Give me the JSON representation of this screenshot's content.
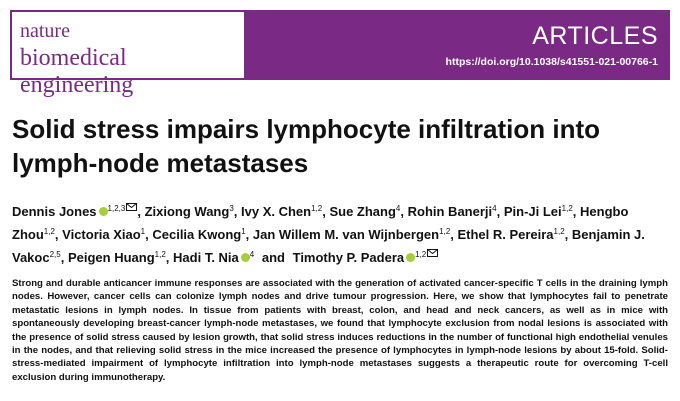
{
  "header": {
    "journal_line1": "nature",
    "journal_line2": "biomedical engineering",
    "section": "ARTICLES",
    "doi": "https://doi.org/10.1038/s41551-021-00766-1"
  },
  "title": "Solid stress impairs lymphocyte infiltration into lymph-node metastases",
  "authors": [
    {
      "name": "Dennis Jones",
      "affiliations": "1,2,3",
      "separator": ","
    },
    {
      "name": "Zixiong Wang",
      "affiliations": "3",
      "separator": ","
    },
    {
      "name": "Ivy X. Chen",
      "affiliations": "1,2",
      "separator": ","
    },
    {
      "name": "Sue Zhang",
      "affiliations": "4",
      "separator": ","
    },
    {
      "name": "Rohin Banerji",
      "affiliations": "4",
      "separator": ","
    },
    {
      "name": "Pin-Ji Lei",
      "affiliations": "1,2",
      "separator": ","
    },
    {
      "name": "Hengbo Zhou",
      "affiliations": "1,2",
      "separator": ","
    },
    {
      "name": "Victoria Xiao",
      "affiliations": "1",
      "separator": ","
    },
    {
      "name": "Cecilia Kwong",
      "affiliations": "1",
      "separator": ","
    },
    {
      "name": "Jan Willem M. van Wijnbergen",
      "affiliations": "1,2",
      "separator": ","
    },
    {
      "name": "Ethel R. Pereira",
      "affiliations": "1,2",
      "separator": ","
    },
    {
      "name": "Benjamin J. Vakoc",
      "affiliations": "2,5",
      "separator": ","
    },
    {
      "name": "Peigen Huang",
      "affiliations": "1,2",
      "separator": ","
    },
    {
      "name": "Hadi T. Nia",
      "affiliations": "4",
      "separator": "and"
    },
    {
      "name": "Timothy P. Padera",
      "affiliations": "1,2"
    }
  ],
  "abstract": "Strong and durable anticancer immune responses are associated with the generation of activated cancer-specific T cells in the draining lymph nodes. However, cancer cells can colonize lymph nodes and drive tumour progression. Here, we show that lymphocytes fail to penetrate metastatic lesions in lymph nodes. In tissue from patients with breast, colon, and head and neck cancers, as well as in mice with spontaneously developing breast-cancer lymph-node metastases, we found that lymphocyte exclusion from nodal lesions is associated with the presence of solid stress caused by lesion growth, that solid stress induces reductions in the number of functional high endothelial venules in the nodes, and that relieving solid stress in the mice increased the presence of lymphocytes in lymph-node lesions by about 15-fold. Solid-stress-mediated impairment of lymphocyte infiltration into lymph-node metastases suggests a therapeutic route for overcoming T-cell exclusion during immunotherapy."
}
